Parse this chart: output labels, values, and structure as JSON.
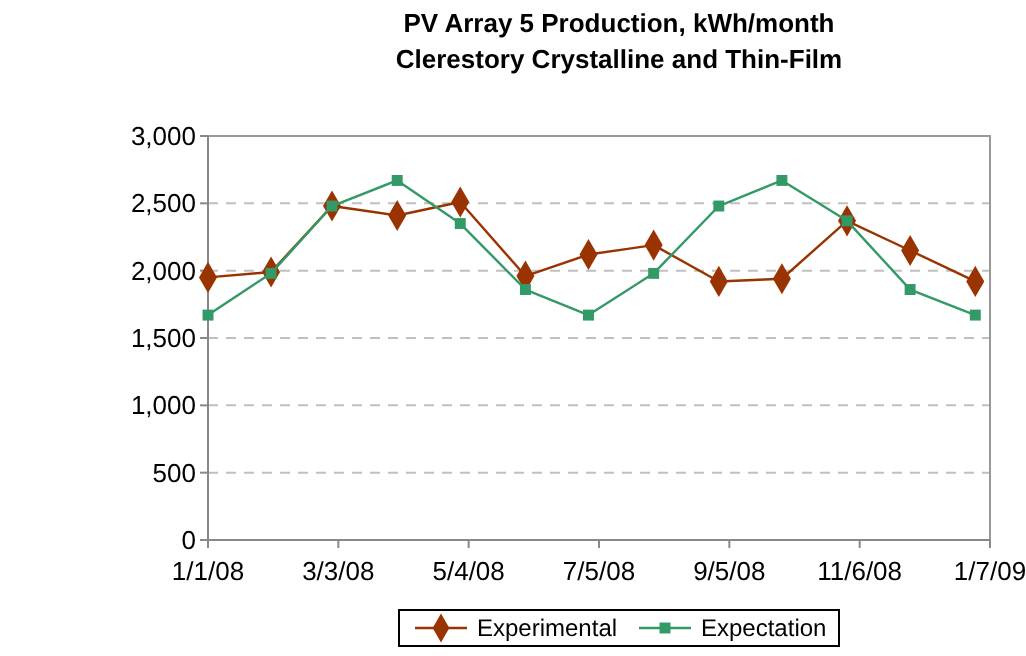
{
  "chart_data": {
    "type": "line",
    "title": "PV Array 5 Production, kWh/month",
    "subtitle": "Clerestory Crystalline and Thin-Film",
    "x": [
      "2008-01-01",
      "2008-01-31",
      "2008-02-29",
      "2008-03-31",
      "2008-04-30",
      "2008-05-31",
      "2008-06-30",
      "2008-07-31",
      "2008-08-31",
      "2008-09-30",
      "2008-10-31",
      "2008-11-30",
      "2008-12-31"
    ],
    "series": [
      {
        "name": "Experimental",
        "color": "#993300",
        "marker": "diamond",
        "values": [
          1950,
          1990,
          2480,
          2410,
          2510,
          1960,
          2120,
          2190,
          1920,
          1940,
          2370,
          2150,
          1920
        ]
      },
      {
        "name": "Expectation",
        "color": "#339966",
        "marker": "square",
        "values": [
          1670,
          1980,
          2480,
          2670,
          2350,
          1860,
          1670,
          1980,
          2480,
          2670,
          2370,
          1860,
          1670
        ]
      }
    ],
    "xlim": [
      "2008-01-01",
      "2009-01-07"
    ],
    "xticks": [
      {
        "value": "2008-01-01",
        "label": "1/1/08"
      },
      {
        "value": "2008-03-03",
        "label": "3/3/08"
      },
      {
        "value": "2008-05-04",
        "label": "5/4/08"
      },
      {
        "value": "2008-07-05",
        "label": "7/5/08"
      },
      {
        "value": "2008-09-05",
        "label": "9/5/08"
      },
      {
        "value": "2008-11-06",
        "label": "11/6/08"
      },
      {
        "value": "2009-01-07",
        "label": "1/7/09"
      }
    ],
    "ylim": [
      0,
      3000
    ],
    "yticks": [
      {
        "value": 0,
        "label": "0"
      },
      {
        "value": 500,
        "label": "500"
      },
      {
        "value": 1000,
        "label": "1,000"
      },
      {
        "value": 1500,
        "label": "1,500"
      },
      {
        "value": 2000,
        "label": "2,000"
      },
      {
        "value": 2500,
        "label": "2,500"
      },
      {
        "value": 3000,
        "label": "3,000"
      }
    ],
    "grid": "y",
    "legend": "bottom",
    "line_style": "solid"
  }
}
